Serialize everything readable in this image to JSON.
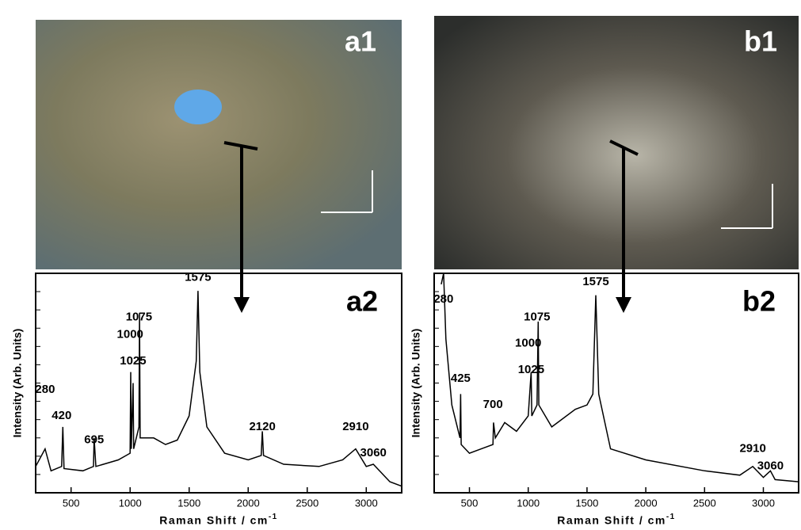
{
  "images": [
    {
      "label": "a1"
    },
    {
      "label": "b1"
    }
  ],
  "chart_data": [
    {
      "type": "line",
      "title": "a2",
      "x_label": "Raman Shift / cm",
      "x_label_sup": "-1",
      "y_label": "Intensity (Arb. Units)",
      "color": "#000000",
      "xlim": [
        200,
        3300
      ],
      "ylim": [
        0,
        100
      ],
      "xticks": [
        500,
        1000,
        1500,
        2000,
        2500,
        3000
      ],
      "x": [
        200,
        280,
        330,
        420,
        430,
        440,
        600,
        690,
        695,
        710,
        900,
        1000,
        1005,
        1010,
        1025,
        1030,
        1075,
        1080,
        1085,
        1200,
        1300,
        1400,
        1500,
        1560,
        1575,
        1590,
        1650,
        1800,
        2000,
        2110,
        2120,
        2130,
        2300,
        2600,
        2800,
        2910,
        3000,
        3060,
        3200,
        3300
      ],
      "values": [
        12,
        20,
        10,
        12,
        30,
        11,
        10,
        12,
        25,
        12,
        15,
        18,
        55,
        20,
        50,
        20,
        30,
        82,
        25,
        25,
        22,
        24,
        35,
        60,
        92,
        55,
        30,
        18,
        15,
        17,
        28,
        17,
        13,
        12,
        15,
        20,
        12,
        13,
        5,
        3
      ],
      "annotations": [
        {
          "x": 280,
          "y": 47
        },
        {
          "x": 420,
          "y": 35
        },
        {
          "x": 695,
          "y": 24
        },
        {
          "x": 1000,
          "y": 72
        },
        {
          "x": 1025,
          "y": 60
        },
        {
          "x": 1075,
          "y": 80
        },
        {
          "x": 1575,
          "y": 98
        },
        {
          "x": 2120,
          "y": 30
        },
        {
          "x": 2910,
          "y": 30
        },
        {
          "x": 3060,
          "y": 18
        }
      ]
    },
    {
      "type": "line",
      "title": "b2",
      "x_label": "Raman Shift / cm",
      "x_label_sup": "-1",
      "y_label": "Intensity (Arb. Units)",
      "color": "#000000",
      "xlim": [
        200,
        3300
      ],
      "ylim": [
        0,
        100
      ],
      "xticks": [
        500,
        1000,
        1500,
        2000,
        2500,
        3000
      ],
      "x": [
        260,
        280,
        300,
        350,
        420,
        425,
        430,
        500,
        600,
        700,
        705,
        720,
        800,
        900,
        1000,
        1025,
        1030,
        1075,
        1085,
        1090,
        1200,
        1400,
        1500,
        1550,
        1575,
        1600,
        1700,
        2000,
        2500,
        2800,
        2910,
        3000,
        3060,
        3100,
        3300
      ],
      "values": [
        95,
        100,
        70,
        40,
        25,
        45,
        22,
        18,
        20,
        22,
        32,
        25,
        32,
        28,
        35,
        55,
        35,
        40,
        78,
        40,
        30,
        38,
        40,
        45,
        90,
        45,
        20,
        15,
        10,
        8,
        12,
        7,
        10,
        6,
        5
      ],
      "annotations": [
        {
          "x": 280,
          "y": 88
        },
        {
          "x": 425,
          "y": 52
        },
        {
          "x": 700,
          "y": 40
        },
        {
          "x": 1000,
          "y": 68
        },
        {
          "x": 1025,
          "y": 56
        },
        {
          "x": 1075,
          "y": 80
        },
        {
          "x": 1575,
          "y": 96
        },
        {
          "x": 2910,
          "y": 20
        },
        {
          "x": 3060,
          "y": 12
        }
      ]
    }
  ]
}
